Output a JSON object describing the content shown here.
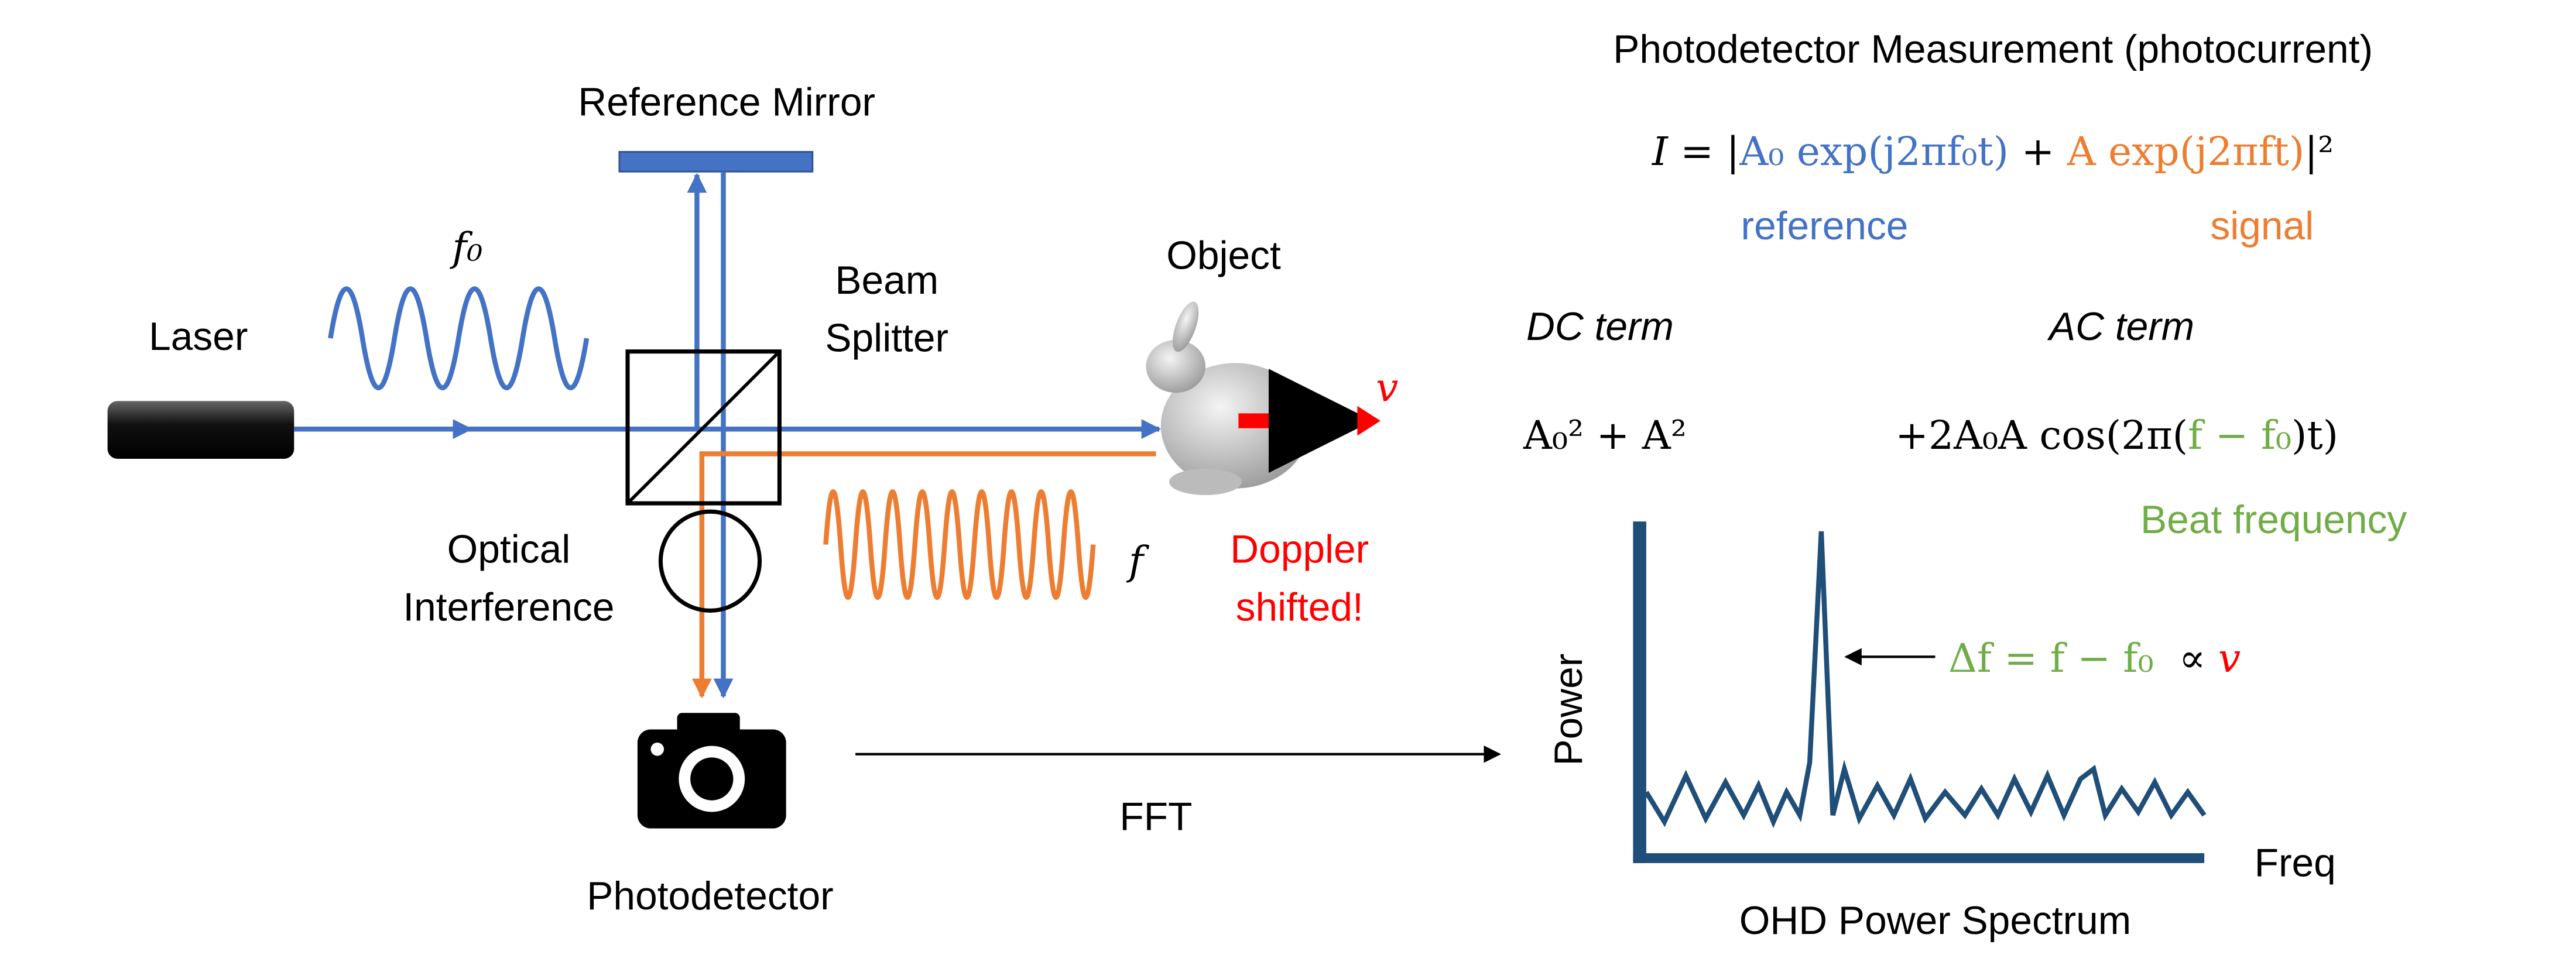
{
  "setup": {
    "laser": "Laser",
    "f0": "f₀",
    "reference_mirror": "Reference Mirror",
    "beam_splitter": [
      "Beam",
      "Splitter"
    ],
    "object": "Object",
    "velocity": "v",
    "optical_interference": [
      "Optical",
      "Interference"
    ],
    "f": "f",
    "doppler": [
      "Doppler",
      "shifted!"
    ],
    "photodetector": "Photodetector",
    "fft": "FFT"
  },
  "equation": {
    "title": "Photodetector Measurement (photocurrent)",
    "parts": [
      "I = |",
      "A₀ exp(j2πf₀t)",
      " + ",
      "A exp(j2πft)",
      "|²"
    ],
    "reference": "reference",
    "signal": "signal",
    "dc_label": "DC term",
    "ac_label": "AC term",
    "dc_term": "A₀² + A²",
    "ac_term": [
      "+2A₀A cos(2π(",
      "f − f₀",
      ")t)"
    ],
    "beat": "Beat frequency"
  },
  "spectrum": {
    "y_label": "Power",
    "x_label": "Freq",
    "title": "OHD Power Spectrum",
    "annotation": [
      "Δf = f − f₀",
      "  ∝ ",
      "v"
    ]
  }
}
